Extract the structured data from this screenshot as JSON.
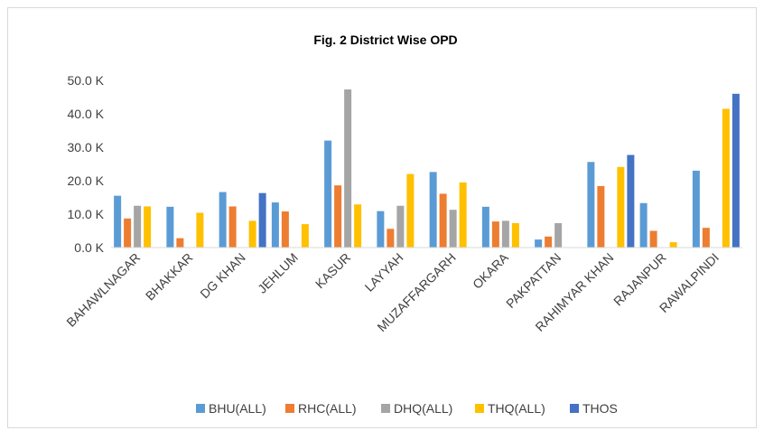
{
  "chart_data": {
    "type": "bar",
    "title": "Fig. 2 District Wise OPD",
    "categories": [
      "BAHAWLNAGAR",
      "BHAKKAR",
      "DG KHAN",
      "JEHLUM",
      "KASUR",
      "LAYYAH",
      "MUZAFFARGARH",
      "OKARA",
      "PAKPATTAN",
      "RAHIMYAR KHAN",
      "RAJANPUR",
      "RAWALPINDI"
    ],
    "series": [
      {
        "name": "BHU(ALL)",
        "color": "#5b9bd5",
        "values": [
          15500,
          12200,
          16600,
          13500,
          32000,
          10900,
          22600,
          12200,
          2400,
          25600,
          13300,
          23000
        ]
      },
      {
        "name": "RHC(ALL)",
        "color": "#ed7d31",
        "values": [
          8700,
          2800,
          12300,
          10800,
          18600,
          5600,
          16100,
          7800,
          3300,
          18400,
          5000,
          5900
        ]
      },
      {
        "name": "DHQ(ALL)",
        "color": "#a5a5a5",
        "values": [
          12500,
          null,
          null,
          null,
          47300,
          12500,
          11300,
          8000,
          7300,
          null,
          null,
          null
        ]
      },
      {
        "name": "THQ(ALL)",
        "color": "#ffc000",
        "values": [
          12300,
          10400,
          8000,
          7000,
          12900,
          22000,
          19500,
          7300,
          null,
          24100,
          1600,
          41500
        ]
      },
      {
        "name": "THOS",
        "color": "#4472c4",
        "values": [
          null,
          null,
          16300,
          null,
          null,
          null,
          null,
          null,
          null,
          27700,
          null,
          46000
        ]
      }
    ],
    "ylim": [
      0,
      50000
    ],
    "yticks": [
      {
        "value": 0,
        "label": "0.0 K"
      },
      {
        "value": 10000,
        "label": "10.0 K"
      },
      {
        "value": 20000,
        "label": "20.0 K"
      },
      {
        "value": 30000,
        "label": "30.0 K"
      },
      {
        "value": 40000,
        "label": "40.0 K"
      },
      {
        "value": 50000,
        "label": "50.0 K"
      }
    ],
    "grid": false,
    "legend": "bottom"
  }
}
